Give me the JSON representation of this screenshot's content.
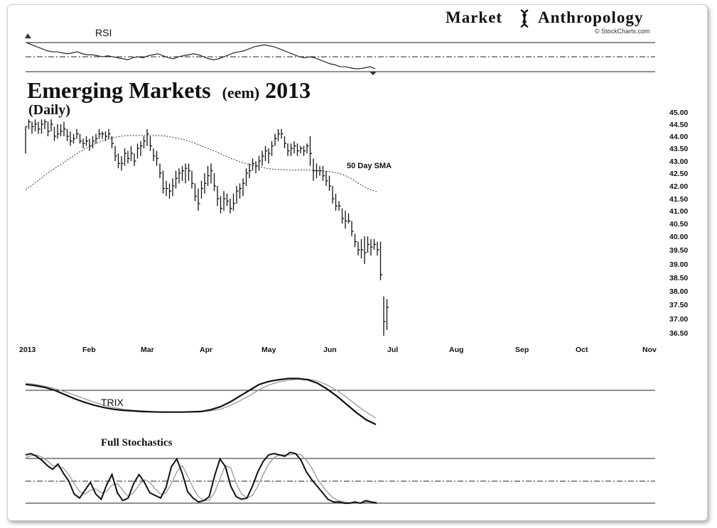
{
  "brand": {
    "left_word": "Market",
    "right_word": "Anthropology",
    "credit": "© StockCharts.com"
  },
  "title": {
    "main": "Emerging Markets",
    "ticker": "(eem)",
    "year": "2013",
    "period": "(Daily)"
  },
  "panels": {
    "rsi_label": "RSI",
    "trix_label": "TRIX",
    "stoch_label": "Full Stochastics",
    "sma_label": "50 Day SMA"
  },
  "colors": {
    "ink": "#111111",
    "sma": "#333333",
    "signal": "#9a9a9a"
  },
  "chart_data": {
    "type": "ohlc",
    "title": "Emerging Markets (eem)2013",
    "subtitle": "(Daily)",
    "x_months": [
      "2013",
      "Feb",
      "Mar",
      "Apr",
      "May",
      "Jun",
      "Jul",
      "Aug",
      "Sep",
      "Oct",
      "Nov"
    ],
    "y_ticks": [
      "45.00",
      "44.50",
      "44.00",
      "43.50",
      "43.00",
      "42.50",
      "42.00",
      "41.50",
      "41.00",
      "40.50",
      "40.00",
      "39.50",
      "39.00",
      "38.50",
      "38.00",
      "37.50",
      "37.00",
      "36.50"
    ],
    "ylim": [
      36.5,
      45.0
    ],
    "price_bars": [
      [
        43.3,
        44.4,
        44.4
      ],
      [
        44.3,
        44.7,
        44.6
      ],
      [
        44.1,
        44.6,
        44.4
      ],
      [
        44.2,
        44.7,
        44.5
      ],
      [
        44.1,
        44.6,
        44.3
      ],
      [
        44.1,
        44.7,
        44.5
      ],
      [
        44.3,
        44.7,
        44.6
      ],
      [
        44.0,
        44.6,
        44.2
      ],
      [
        44.2,
        44.7,
        44.5
      ],
      [
        43.8,
        44.4,
        44.0
      ],
      [
        43.9,
        44.5,
        44.1
      ],
      [
        44.0,
        44.5,
        44.2
      ],
      [
        44.0,
        44.6,
        44.3
      ],
      [
        43.8,
        44.3,
        44.0
      ],
      [
        43.6,
        44.2,
        43.8
      ],
      [
        43.7,
        44.1,
        43.9
      ],
      [
        43.9,
        44.3,
        44.1
      ],
      [
        43.7,
        44.1,
        43.8
      ],
      [
        43.5,
        43.9,
        43.7
      ],
      [
        43.6,
        44.0,
        43.8
      ],
      [
        43.4,
        43.9,
        43.6
      ],
      [
        43.5,
        44.0,
        43.8
      ],
      [
        43.7,
        44.1,
        43.9
      ],
      [
        43.9,
        44.3,
        44.1
      ],
      [
        43.9,
        44.2,
        44.1
      ],
      [
        43.8,
        44.2,
        44.0
      ],
      [
        43.9,
        44.3,
        44.1
      ],
      [
        43.5,
        44.0,
        43.7
      ],
      [
        43.0,
        43.6,
        43.2
      ],
      [
        42.7,
        43.3,
        42.9
      ],
      [
        42.6,
        43.2,
        42.9
      ],
      [
        42.8,
        43.5,
        43.3
      ],
      [
        42.9,
        43.4,
        43.1
      ],
      [
        43.0,
        43.6,
        43.3
      ],
      [
        42.8,
        43.3,
        43.0
      ],
      [
        43.1,
        43.7,
        43.5
      ],
      [
        43.2,
        43.8,
        43.6
      ],
      [
        43.5,
        44.0,
        43.8
      ],
      [
        43.6,
        44.3,
        44.1
      ],
      [
        43.4,
        44.0,
        43.6
      ],
      [
        43.0,
        43.5,
        43.2
      ],
      [
        42.8,
        43.4,
        43.1
      ],
      [
        42.3,
        42.9,
        42.5
      ],
      [
        41.7,
        42.6,
        41.9
      ],
      [
        41.6,
        42.2,
        41.9
      ],
      [
        41.5,
        42.1,
        41.8
      ],
      [
        41.6,
        42.3,
        42.0
      ],
      [
        41.9,
        42.6,
        42.3
      ],
      [
        42.1,
        42.7,
        42.5
      ],
      [
        42.2,
        42.8,
        42.6
      ],
      [
        42.1,
        42.9,
        42.7
      ],
      [
        42.2,
        42.9,
        42.6
      ],
      [
        41.9,
        42.6,
        42.1
      ],
      [
        41.4,
        42.1,
        41.6
      ],
      [
        41.0,
        41.9,
        41.3
      ],
      [
        41.5,
        42.2,
        41.9
      ],
      [
        41.7,
        42.5,
        42.1
      ],
      [
        42.0,
        42.8,
        42.4
      ],
      [
        42.1,
        42.9,
        42.6
      ],
      [
        41.8,
        42.5,
        42.0
      ],
      [
        41.2,
        42.0,
        41.5
      ],
      [
        40.9,
        41.6,
        41.1
      ],
      [
        41.0,
        41.8,
        41.5
      ],
      [
        41.2,
        41.7,
        41.4
      ],
      [
        40.9,
        41.5,
        41.1
      ],
      [
        41.0,
        41.7,
        41.3
      ],
      [
        41.3,
        42.0,
        41.8
      ],
      [
        41.5,
        42.1,
        41.9
      ],
      [
        41.6,
        42.3,
        42.1
      ],
      [
        42.0,
        42.7,
        42.5
      ],
      [
        42.3,
        42.9,
        42.6
      ],
      [
        42.6,
        43.1,
        42.9
      ],
      [
        42.5,
        43.0,
        42.8
      ],
      [
        42.6,
        43.2,
        43.0
      ],
      [
        42.8,
        43.4,
        43.2
      ],
      [
        43.0,
        43.6,
        43.4
      ],
      [
        42.9,
        43.5,
        43.3
      ],
      [
        43.2,
        43.8,
        43.6
      ],
      [
        43.6,
        44.1,
        43.9
      ],
      [
        43.8,
        44.3,
        44.1
      ],
      [
        43.9,
        44.3,
        44.1
      ],
      [
        43.5,
        44.0,
        43.7
      ],
      [
        43.2,
        43.7,
        43.4
      ],
      [
        43.2,
        43.7,
        43.5
      ],
      [
        43.3,
        43.8,
        43.6
      ],
      [
        43.2,
        43.7,
        43.4
      ],
      [
        43.3,
        43.6,
        43.5
      ],
      [
        43.2,
        43.6,
        43.4
      ],
      [
        43.3,
        43.7,
        43.6
      ],
      [
        42.8,
        44.0,
        43.3
      ],
      [
        42.2,
        43.1,
        42.6
      ],
      [
        42.3,
        42.9,
        42.6
      ],
      [
        42.4,
        42.8,
        42.6
      ],
      [
        42.2,
        42.8,
        42.4
      ],
      [
        42.0,
        42.6,
        42.2
      ],
      [
        41.8,
        42.4,
        42.0
      ],
      [
        41.3,
        42.0,
        41.5
      ],
      [
        41.0,
        41.7,
        41.2
      ],
      [
        41.0,
        41.4,
        41.2
      ],
      [
        40.5,
        41.1,
        40.7
      ],
      [
        40.3,
        41.0,
        40.6
      ],
      [
        40.5,
        40.9,
        40.6
      ],
      [
        40.0,
        40.6,
        40.2
      ],
      [
        39.6,
        40.1,
        39.8
      ],
      [
        39.3,
        39.8,
        39.5
      ],
      [
        39.2,
        39.9,
        39.5
      ],
      [
        39.0,
        40.0,
        39.4
      ],
      [
        39.4,
        40.0,
        39.7
      ],
      [
        39.3,
        39.9,
        39.6
      ],
      [
        39.5,
        39.9,
        39.7
      ],
      [
        39.3,
        39.8,
        39.5
      ],
      [
        38.4,
        39.8,
        38.6
      ],
      [
        36.4,
        37.8,
        36.9
      ],
      [
        36.6,
        37.7,
        37.4
      ]
    ],
    "sma50": [
      41.85,
      42.0,
      42.17,
      42.33,
      42.5,
      42.65,
      42.8,
      42.95,
      43.1,
      43.24,
      43.38,
      43.5,
      43.62,
      43.72,
      43.8,
      43.88,
      43.94,
      43.99,
      44.02,
      44.03,
      44.03,
      44.03,
      44.03,
      44.03,
      44.03,
      44.02,
      43.99,
      43.95,
      43.9,
      43.85,
      43.78,
      43.7,
      43.61,
      43.52,
      43.43,
      43.34,
      43.24,
      43.15,
      43.06,
      42.98,
      42.91,
      42.85,
      42.79,
      42.74,
      42.7,
      42.67,
      42.65,
      42.64,
      42.63,
      42.63,
      42.63,
      42.63,
      42.62,
      42.61,
      42.59,
      42.57,
      42.54,
      42.5,
      42.43,
      42.33,
      42.2,
      42.06,
      41.94,
      41.84,
      41.78
    ],
    "trix": [
      0.1,
      0.08,
      0.05,
      0.0,
      -0.07,
      -0.14,
      -0.2,
      -0.25,
      -0.29,
      -0.32,
      -0.34,
      -0.35,
      -0.36,
      -0.365,
      -0.37,
      -0.37,
      -0.37,
      -0.365,
      -0.36,
      -0.33,
      -0.28,
      -0.2,
      -0.1,
      0.0,
      0.1,
      0.15,
      0.18,
      0.2,
      0.2,
      0.18,
      0.12,
      0.02,
      -0.1,
      -0.24,
      -0.38,
      -0.5,
      -0.58
    ],
    "trix_signal": [
      0.12,
      0.1,
      0.07,
      0.03,
      -0.02,
      -0.08,
      -0.14,
      -0.2,
      -0.25,
      -0.29,
      -0.32,
      -0.34,
      -0.35,
      -0.36,
      -0.365,
      -0.37,
      -0.37,
      -0.37,
      -0.365,
      -0.35,
      -0.32,
      -0.26,
      -0.18,
      -0.09,
      0.01,
      0.09,
      0.14,
      0.17,
      0.19,
      0.19,
      0.16,
      0.09,
      0.0,
      -0.12,
      -0.25,
      -0.37,
      -0.47
    ],
    "rsi": [
      64,
      62,
      60,
      58,
      56,
      55,
      55,
      54,
      53,
      54,
      55,
      53,
      52,
      52,
      51,
      50,
      51,
      50,
      49,
      48,
      47,
      49,
      50,
      49,
      51,
      52,
      53,
      51,
      49,
      48,
      50,
      51,
      52,
      53,
      52,
      50,
      48,
      47,
      48,
      50,
      52,
      54,
      55,
      56,
      58,
      60,
      61,
      62,
      61,
      60,
      58,
      56,
      54,
      52,
      50,
      49,
      50,
      49,
      47,
      45,
      43,
      42,
      40,
      40,
      39,
      38,
      38,
      39,
      40,
      38
    ],
    "stoch_k": [
      88,
      90,
      86,
      80,
      72,
      66,
      74,
      60,
      48,
      28,
      22,
      34,
      46,
      28,
      20,
      42,
      58,
      30,
      18,
      22,
      44,
      58,
      46,
      30,
      26,
      22,
      38,
      70,
      82,
      60,
      32,
      22,
      16,
      18,
      24,
      56,
      82,
      70,
      40,
      24,
      20,
      22,
      40,
      62,
      78,
      88,
      90,
      88,
      86,
      92,
      90,
      80,
      62,
      50,
      40,
      30,
      20,
      16,
      16,
      14,
      14,
      16,
      14,
      18,
      16,
      14
    ],
    "stoch_d": [
      84,
      87,
      88,
      85,
      79,
      72,
      70,
      68,
      58,
      44,
      32,
      28,
      34,
      36,
      30,
      32,
      42,
      44,
      34,
      24,
      30,
      42,
      50,
      46,
      36,
      28,
      30,
      44,
      62,
      72,
      56,
      38,
      24,
      18,
      19,
      30,
      52,
      72,
      68,
      44,
      28,
      22,
      26,
      40,
      58,
      74,
      84,
      88,
      88,
      88,
      90,
      88,
      80,
      68,
      52,
      40,
      30,
      22,
      18,
      16,
      15,
      15,
      15,
      16,
      16,
      16
    ]
  }
}
